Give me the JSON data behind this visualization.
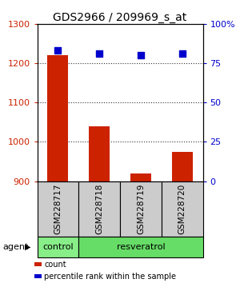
{
  "title": "GDS2966 / 209969_s_at",
  "samples": [
    "GSM228717",
    "GSM228718",
    "GSM228719",
    "GSM228720"
  ],
  "counts": [
    1220,
    1040,
    920,
    975
  ],
  "percentile_ranks": [
    83,
    81,
    80,
    81
  ],
  "ylim_left": [
    900,
    1300
  ],
  "ylim_right": [
    0,
    100
  ],
  "yticks_left": [
    900,
    1000,
    1100,
    1200,
    1300
  ],
  "yticks_right": [
    0,
    25,
    50,
    75,
    100
  ],
  "yticklabels_right": [
    "0",
    "25",
    "50",
    "75",
    "100%"
  ],
  "bar_color": "#cc2200",
  "dot_color": "#0000cc",
  "agent_groups": [
    {
      "label": "control",
      "color": "#88ee88",
      "span": [
        0,
        1
      ]
    },
    {
      "label": "resveratrol",
      "color": "#66dd66",
      "span": [
        1,
        4
      ]
    }
  ],
  "agent_label": "agent",
  "legend_items": [
    {
      "color": "#cc2200",
      "label": "count"
    },
    {
      "color": "#0000cc",
      "label": "percentile rank within the sample"
    }
  ],
  "sample_box_color": "#cccccc",
  "title_fontsize": 10,
  "axis_left_color": "#cc2200",
  "axis_right_color": "#0000cc",
  "grid_color": "#333333",
  "dot_size": 30
}
